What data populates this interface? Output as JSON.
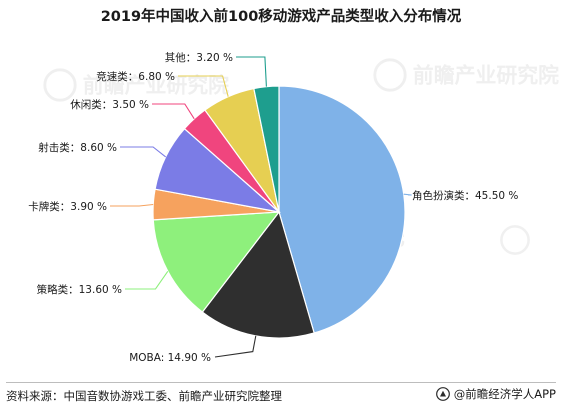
{
  "title": "2019年中国收入前100移动游戏产品类型收入分布情况",
  "chart_data": {
    "type": "pie",
    "title": "2019年中国收入前100移动游戏产品类型收入分布情况",
    "slices": [
      {
        "name": "角色扮演类",
        "value": 45.5,
        "label": "45.50 %",
        "color": "#7fb2e8"
      },
      {
        "name": "MOBA",
        "value": 14.9,
        "label": "14.90 %",
        "color": "#2f2f2f"
      },
      {
        "name": "策略类",
        "value": 13.6,
        "label": "13.60 %",
        "color": "#8ef07c"
      },
      {
        "name": "卡牌类",
        "value": 3.9,
        "label": "3.90 %",
        "color": "#f6a25e"
      },
      {
        "name": "射击类",
        "value": 8.6,
        "label": "8.60 %",
        "color": "#7b7ce6"
      },
      {
        "name": "休闲类",
        "value": 3.5,
        "label": "3.50 %",
        "color": "#f0457e"
      },
      {
        "name": "竞速类",
        "value": 6.8,
        "label": "6.80 %",
        "color": "#e6cf52"
      },
      {
        "name": "其他",
        "value": 3.2,
        "label": "3.20 %",
        "color": "#1e9e8e"
      }
    ],
    "start": "12 o'clock",
    "direction": "clockwise",
    "legend": "none (leader-line labels)"
  },
  "watermark": "前瞻产业研究院",
  "footer": {
    "source": "资料来源：中国音数协游戏工委、前瞻产业研究院整理",
    "brand": "@前瞻经济学人APP"
  }
}
